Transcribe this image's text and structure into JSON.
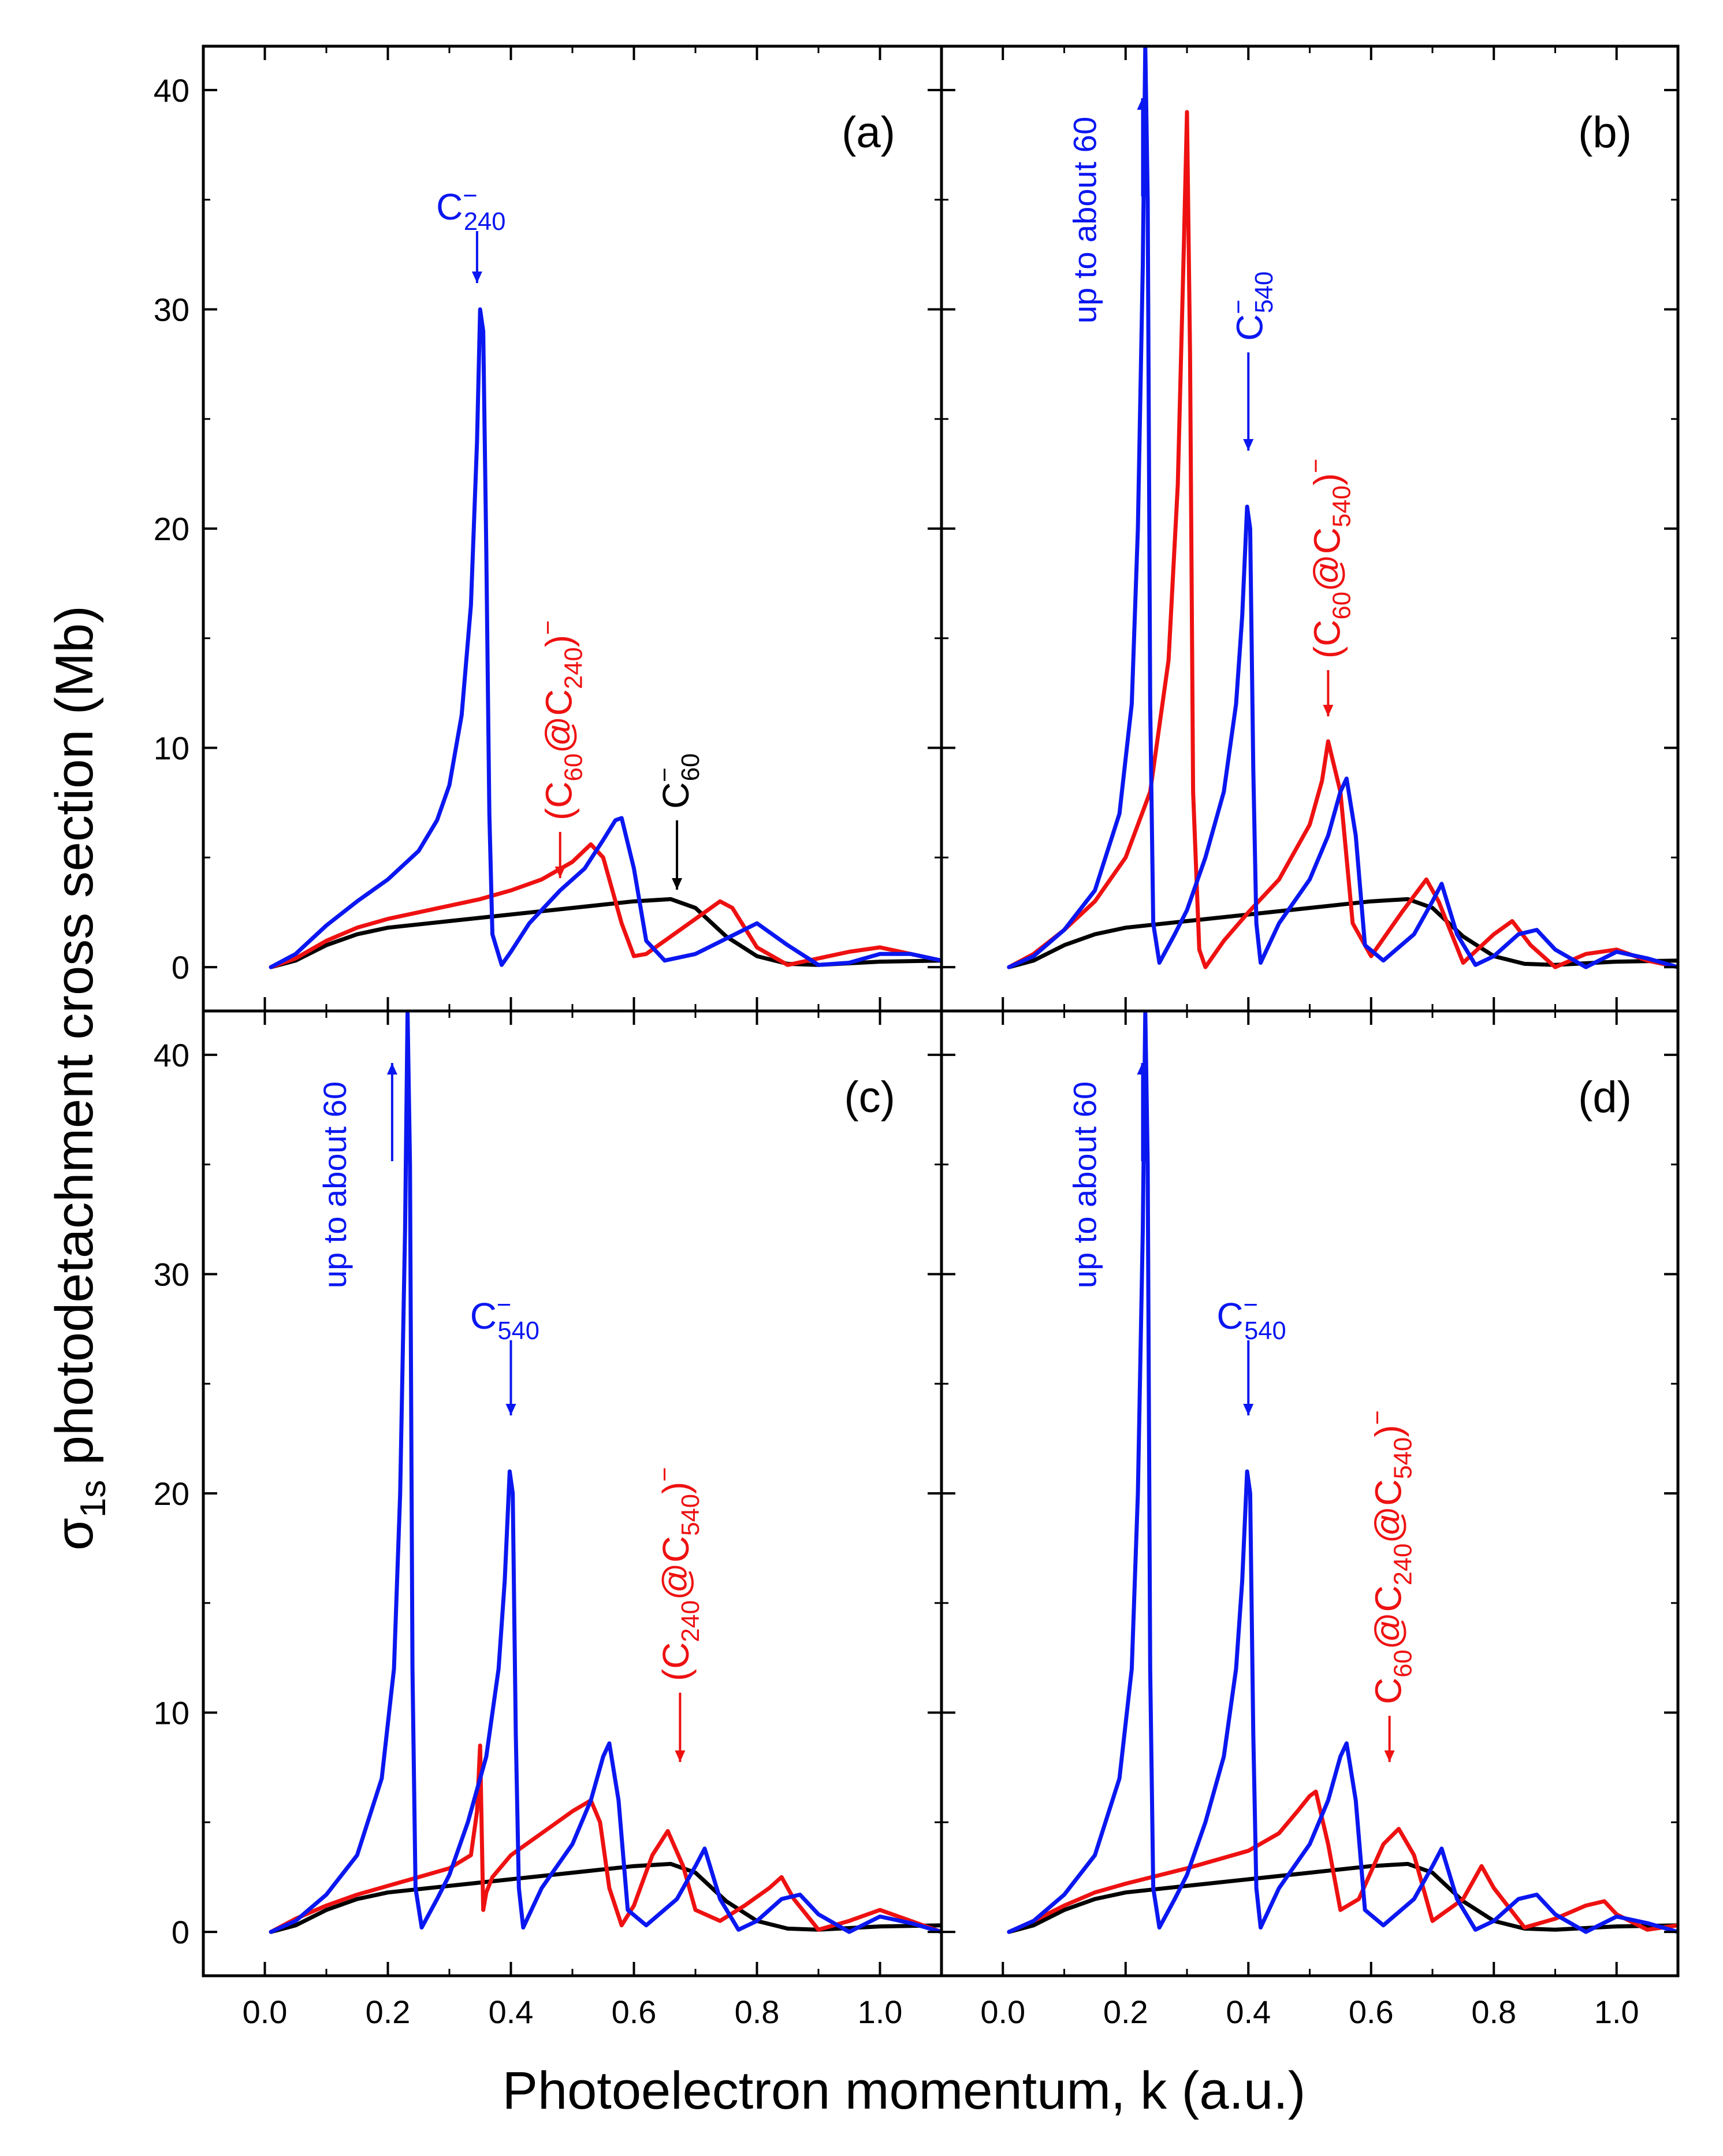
{
  "figure": {
    "ylabel_main": "σ",
    "ylabel_sub": "1s",
    "ylabel_rest": " photodetachment cross section (Mb)",
    "xlabel": "Photoelectron momentum, k (a.u.)"
  },
  "colors": {
    "blue": "#0a17f0",
    "red": "#ee1111",
    "black": "#000000"
  },
  "chart_data": [
    {
      "type": "line",
      "panel": "(a)",
      "xlim": [
        -0.1,
        1.1
      ],
      "ylim": [
        -2,
        42
      ],
      "xticks": [
        "0.0",
        "0.2",
        "0.4",
        "0.6",
        "0.8",
        "1.0"
      ],
      "yticks": [
        "0",
        "10",
        "20",
        "30",
        "40"
      ],
      "series": [
        {
          "name": "C60-",
          "color": "black",
          "x": [
            0.01,
            0.05,
            0.1,
            0.15,
            0.2,
            0.3,
            0.4,
            0.5,
            0.6,
            0.66,
            0.7,
            0.75,
            0.8,
            0.85,
            0.9,
            1.0,
            1.1
          ],
          "y": [
            0,
            0.3,
            1.0,
            1.5,
            1.8,
            2.1,
            2.4,
            2.7,
            3.0,
            3.1,
            2.7,
            1.4,
            0.5,
            0.15,
            0.1,
            0.25,
            0.3
          ]
        },
        {
          "name": "(C60@C240)-",
          "color": "red",
          "x": [
            0.01,
            0.05,
            0.1,
            0.15,
            0.2,
            0.25,
            0.3,
            0.35,
            0.4,
            0.45,
            0.5,
            0.53,
            0.55,
            0.58,
            0.6,
            0.62,
            0.65,
            0.7,
            0.74,
            0.76,
            0.8,
            0.85,
            0.9,
            0.95,
            1.0,
            1.05,
            1.1
          ],
          "y": [
            0,
            0.4,
            1.2,
            1.8,
            2.2,
            2.5,
            2.8,
            3.1,
            3.5,
            4.0,
            4.8,
            5.6,
            5.0,
            2.0,
            0.5,
            0.6,
            1.2,
            2.2,
            3.0,
            2.7,
            0.9,
            0.1,
            0.4,
            0.7,
            0.9,
            0.6,
            0.3
          ]
        },
        {
          "name": "C240-",
          "color": "blue",
          "x": [
            0.01,
            0.05,
            0.1,
            0.15,
            0.2,
            0.25,
            0.28,
            0.3,
            0.32,
            0.335,
            0.345,
            0.35,
            0.355,
            0.36,
            0.365,
            0.37,
            0.385,
            0.4,
            0.43,
            0.48,
            0.52,
            0.55,
            0.57,
            0.58,
            0.6,
            0.62,
            0.65,
            0.7,
            0.75,
            0.8,
            0.85,
            0.9,
            0.95,
            1.0,
            1.05,
            1.1
          ],
          "y": [
            0,
            0.6,
            1.9,
            3.0,
            4.0,
            5.3,
            6.7,
            8.3,
            11.5,
            16.5,
            24.0,
            30.0,
            29.0,
            19.0,
            7.0,
            1.5,
            0.1,
            0.7,
            2.0,
            3.5,
            4.5,
            5.8,
            6.7,
            6.8,
            4.5,
            1.2,
            0.3,
            0.6,
            1.3,
            2.0,
            1.0,
            0.1,
            0.2,
            0.6,
            0.6,
            0.3
          ]
        }
      ],
      "annotations": [
        {
          "text": "C",
          "sup": "−",
          "sub": "240",
          "color": "blue",
          "rotated": false
        },
        {
          "text": "(C",
          "sub": "60",
          "mid": "@C",
          "sub2": "240",
          "tail": ")",
          "sup": "−",
          "color": "red",
          "rotated": true
        },
        {
          "text": "C",
          "sup": "−",
          "sub": "60",
          "color": "black",
          "rotated": true
        }
      ]
    },
    {
      "type": "line",
      "panel": "(b)",
      "xlim": [
        -0.1,
        1.1
      ],
      "ylim": [
        -2,
        42
      ],
      "xticks": [
        "0.0",
        "0.2",
        "0.4",
        "0.6",
        "0.8",
        "1.0"
      ],
      "yticks": [
        "0",
        "10",
        "20",
        "30",
        "40"
      ],
      "series": [
        {
          "name": "C60-",
          "color": "black",
          "x": [
            0.01,
            0.05,
            0.1,
            0.15,
            0.2,
            0.3,
            0.4,
            0.5,
            0.6,
            0.66,
            0.7,
            0.75,
            0.8,
            0.85,
            0.9,
            1.0,
            1.1
          ],
          "y": [
            0,
            0.3,
            1.0,
            1.5,
            1.8,
            2.1,
            2.4,
            2.7,
            3.0,
            3.1,
            2.7,
            1.4,
            0.5,
            0.15,
            0.1,
            0.25,
            0.3
          ]
        },
        {
          "name": "(C60@C540)-",
          "color": "red",
          "x": [
            0.01,
            0.05,
            0.1,
            0.15,
            0.2,
            0.24,
            0.27,
            0.285,
            0.295,
            0.3,
            0.305,
            0.31,
            0.32,
            0.33,
            0.36,
            0.4,
            0.45,
            0.5,
            0.52,
            0.53,
            0.55,
            0.57,
            0.6,
            0.65,
            0.69,
            0.71,
            0.75,
            0.8,
            0.83,
            0.86,
            0.9,
            0.95,
            1.0,
            1.05,
            1.1
          ],
          "y": [
            0,
            0.6,
            1.7,
            3.0,
            5.0,
            8.0,
            14.0,
            22.0,
            33.0,
            39.0,
            28.0,
            8.0,
            0.8,
            0.0,
            1.2,
            2.5,
            4.0,
            6.5,
            8.5,
            10.3,
            8.0,
            2.0,
            0.5,
            2.5,
            4.0,
            3.0,
            0.2,
            1.5,
            2.1,
            1.0,
            0.0,
            0.6,
            0.8,
            0.3,
            0.0
          ]
        },
        {
          "name": "C540-",
          "color": "blue",
          "x": [
            0.01,
            0.05,
            0.1,
            0.15,
            0.19,
            0.21,
            0.22,
            0.228,
            0.232,
            0.236,
            0.24,
            0.245,
            0.255,
            0.28,
            0.3,
            0.33,
            0.36,
            0.38,
            0.39,
            0.398,
            0.403,
            0.408,
            0.413,
            0.42,
            0.45,
            0.5,
            0.53,
            0.55,
            0.56,
            0.575,
            0.59,
            0.62,
            0.67,
            0.7,
            0.715,
            0.74,
            0.77,
            0.8,
            0.84,
            0.87,
            0.9,
            0.95,
            1.0,
            1.05,
            1.1
          ],
          "y": [
            0,
            0.5,
            1.7,
            3.5,
            7.0,
            12.0,
            20.0,
            32.0,
            42.0,
            35.0,
            12.0,
            2.0,
            0.2,
            1.5,
            2.6,
            5.0,
            8.0,
            12.0,
            16.0,
            21.0,
            20.0,
            9.0,
            2.0,
            0.2,
            2.0,
            4.0,
            6.0,
            8.0,
            8.6,
            6.0,
            1.0,
            0.3,
            1.5,
            3.0,
            3.8,
            1.5,
            0.1,
            0.5,
            1.5,
            1.7,
            0.8,
            0.0,
            0.7,
            0.4,
            0.0
          ]
        }
      ],
      "annotations": [
        {
          "text": "up to about 60",
          "color": "blue",
          "rotated": true
        },
        {
          "text": "C",
          "sup": "−",
          "sub": "540",
          "color": "blue",
          "rotated": true
        },
        {
          "text": "(C",
          "sub": "60",
          "mid": "@C",
          "sub2": "540",
          "tail": ")",
          "sup": "−",
          "color": "red",
          "rotated": true
        }
      ]
    },
    {
      "type": "line",
      "panel": "(c)",
      "xlim": [
        -0.1,
        1.1
      ],
      "ylim": [
        -2,
        42
      ],
      "xticks": [
        "0.0",
        "0.2",
        "0.4",
        "0.6",
        "0.8",
        "1.0"
      ],
      "yticks": [
        "0",
        "10",
        "20",
        "30",
        "40"
      ],
      "series": [
        {
          "name": "C60-",
          "color": "black",
          "x": [
            0.01,
            0.05,
            0.1,
            0.15,
            0.2,
            0.3,
            0.4,
            0.5,
            0.6,
            0.66,
            0.7,
            0.75,
            0.8,
            0.85,
            0.9,
            1.0,
            1.1
          ],
          "y": [
            0,
            0.3,
            1.0,
            1.5,
            1.8,
            2.1,
            2.4,
            2.7,
            3.0,
            3.1,
            2.7,
            1.4,
            0.5,
            0.15,
            0.1,
            0.25,
            0.3
          ]
        },
        {
          "name": "(C240@C540)-",
          "color": "red",
          "x": [
            0.01,
            0.05,
            0.1,
            0.15,
            0.2,
            0.25,
            0.3,
            0.335,
            0.345,
            0.35,
            0.355,
            0.36,
            0.37,
            0.4,
            0.45,
            0.5,
            0.53,
            0.545,
            0.56,
            0.58,
            0.6,
            0.63,
            0.655,
            0.68,
            0.7,
            0.74,
            0.78,
            0.82,
            0.84,
            0.86,
            0.9,
            0.95,
            1.0,
            1.05,
            1.1
          ],
          "y": [
            0,
            0.6,
            1.2,
            1.7,
            2.1,
            2.5,
            2.9,
            3.5,
            5.5,
            8.5,
            1.0,
            1.8,
            2.5,
            3.5,
            4.5,
            5.5,
            6.0,
            5.0,
            2.0,
            0.3,
            1.2,
            3.5,
            4.6,
            3.0,
            1.0,
            0.5,
            1.2,
            2.0,
            2.5,
            1.5,
            0.1,
            0.5,
            1.0,
            0.5,
            0.0
          ]
        },
        {
          "name": "C540-",
          "color": "blue",
          "x": [
            0.01,
            0.05,
            0.1,
            0.15,
            0.19,
            0.21,
            0.22,
            0.228,
            0.232,
            0.236,
            0.24,
            0.245,
            0.255,
            0.28,
            0.3,
            0.33,
            0.36,
            0.38,
            0.39,
            0.398,
            0.403,
            0.408,
            0.413,
            0.42,
            0.45,
            0.5,
            0.53,
            0.55,
            0.56,
            0.575,
            0.59,
            0.62,
            0.67,
            0.7,
            0.715,
            0.74,
            0.77,
            0.8,
            0.84,
            0.87,
            0.9,
            0.95,
            1.0,
            1.05,
            1.1
          ],
          "y": [
            0,
            0.5,
            1.7,
            3.5,
            7.0,
            12.0,
            20.0,
            32.0,
            42.0,
            35.0,
            12.0,
            2.0,
            0.2,
            1.5,
            2.6,
            5.0,
            8.0,
            12.0,
            16.0,
            21.0,
            20.0,
            9.0,
            2.0,
            0.2,
            2.0,
            4.0,
            6.0,
            8.0,
            8.6,
            6.0,
            1.0,
            0.3,
            1.5,
            3.0,
            3.8,
            1.5,
            0.1,
            0.5,
            1.5,
            1.7,
            0.8,
            0.0,
            0.7,
            0.4,
            0.0
          ]
        }
      ],
      "annotations": [
        {
          "text": "up to about 60",
          "color": "blue",
          "rotated": true
        },
        {
          "text": "C",
          "sup": "−",
          "sub": "540",
          "color": "blue",
          "rotated": false
        },
        {
          "text": "(C",
          "sub": "240",
          "mid": "@C",
          "sub2": "540",
          "tail": ")",
          "sup": "−",
          "color": "red",
          "rotated": true
        }
      ]
    },
    {
      "type": "line",
      "panel": "(d)",
      "xlim": [
        -0.1,
        1.1
      ],
      "ylim": [
        -2,
        42
      ],
      "xticks": [
        "0.0",
        "0.2",
        "0.4",
        "0.6",
        "0.8",
        "1.0"
      ],
      "yticks": [
        "0",
        "10",
        "20",
        "30",
        "40"
      ],
      "series": [
        {
          "name": "C60-",
          "color": "black",
          "x": [
            0.01,
            0.05,
            0.1,
            0.15,
            0.2,
            0.3,
            0.4,
            0.5,
            0.6,
            0.66,
            0.7,
            0.75,
            0.8,
            0.85,
            0.9,
            1.0,
            1.1
          ],
          "y": [
            0,
            0.3,
            1.0,
            1.5,
            1.8,
            2.1,
            2.4,
            2.7,
            3.0,
            3.1,
            2.7,
            1.4,
            0.5,
            0.15,
            0.1,
            0.25,
            0.3
          ]
        },
        {
          "name": "C60@C240@C540-",
          "color": "red",
          "x": [
            0.01,
            0.05,
            0.1,
            0.15,
            0.2,
            0.3,
            0.4,
            0.45,
            0.48,
            0.5,
            0.51,
            0.53,
            0.55,
            0.58,
            0.62,
            0.645,
            0.67,
            0.7,
            0.75,
            0.78,
            0.8,
            0.85,
            0.9,
            0.95,
            0.98,
            1.0,
            1.05,
            1.1
          ],
          "y": [
            0,
            0.5,
            1.2,
            1.8,
            2.2,
            2.9,
            3.7,
            4.5,
            5.5,
            6.2,
            6.4,
            4.0,
            1.0,
            1.5,
            4.0,
            4.7,
            3.5,
            0.5,
            1.5,
            3.0,
            2.0,
            0.2,
            0.6,
            1.2,
            1.4,
            0.8,
            0.1,
            0.3
          ]
        },
        {
          "name": "C540-",
          "color": "blue",
          "x": [
            0.01,
            0.05,
            0.1,
            0.15,
            0.19,
            0.21,
            0.22,
            0.228,
            0.232,
            0.236,
            0.24,
            0.245,
            0.255,
            0.28,
            0.3,
            0.33,
            0.36,
            0.38,
            0.39,
            0.398,
            0.403,
            0.408,
            0.413,
            0.42,
            0.45,
            0.5,
            0.53,
            0.55,
            0.56,
            0.575,
            0.59,
            0.62,
            0.67,
            0.7,
            0.715,
            0.74,
            0.77,
            0.8,
            0.84,
            0.87,
            0.9,
            0.95,
            1.0,
            1.05,
            1.1
          ],
          "y": [
            0,
            0.5,
            1.7,
            3.5,
            7.0,
            12.0,
            20.0,
            32.0,
            42.0,
            35.0,
            12.0,
            2.0,
            0.2,
            1.5,
            2.6,
            5.0,
            8.0,
            12.0,
            16.0,
            21.0,
            20.0,
            9.0,
            2.0,
            0.2,
            2.0,
            4.0,
            6.0,
            8.0,
            8.6,
            6.0,
            1.0,
            0.3,
            1.5,
            3.0,
            3.8,
            1.5,
            0.1,
            0.5,
            1.5,
            1.7,
            0.8,
            0.0,
            0.7,
            0.4,
            0.0
          ]
        }
      ],
      "annotations": [
        {
          "text": "up to about 60",
          "color": "blue",
          "rotated": true
        },
        {
          "text": "C",
          "sup": "−",
          "sub": "540",
          "color": "blue",
          "rotated": false
        },
        {
          "text": "C",
          "sub": "60",
          "mid": "@C",
          "sub2": "240",
          "mid2": "@C",
          "sub3": "540",
          "tail": ")",
          "sup": "−",
          "color": "red",
          "rotated": true
        }
      ]
    }
  ]
}
